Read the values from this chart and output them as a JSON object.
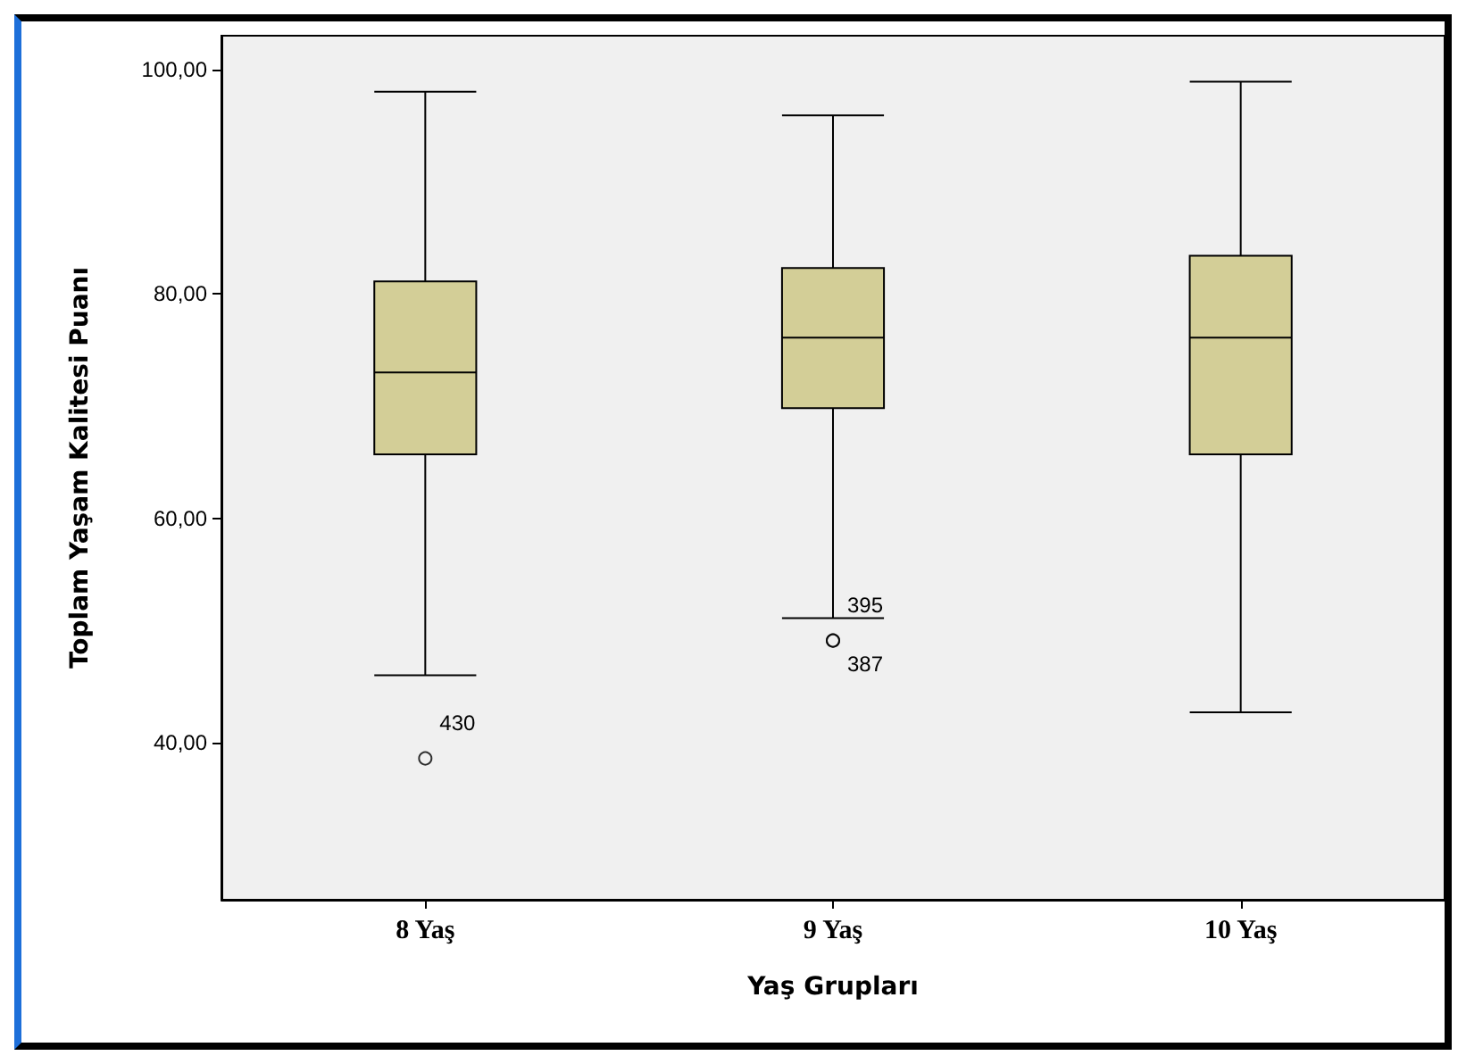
{
  "chart_data": {
    "type": "box",
    "xlabel": "Yaş Grupları",
    "ylabel": "Toplam Yaşam Kalitesi Puanı",
    "categories": [
      "8 Yaş",
      "9 Yaş",
      "10 Yaş"
    ],
    "series": [
      {
        "color": "#d3ce97",
        "boxes": [
          {
            "low": 46,
            "q1": 65.7,
            "median": 73,
            "q3": 81.1,
            "high": 98,
            "outliers": [
              38.6
            ]
          },
          {
            "low": 51.1,
            "q1": 69.8,
            "median": 76.1,
            "q3": 82.3,
            "high": 95.9,
            "outliers": [
              49.1,
              49.1
            ]
          },
          {
            "low": 42.7,
            "q1": 65.7,
            "median": 76.1,
            "q3": 83.4,
            "high": 98.9
          }
        ]
      }
    ],
    "ylim": [
      26,
      103
    ],
    "yticks": [
      {
        "value": 40,
        "label": "40,00"
      },
      {
        "value": 60,
        "label": "60,00"
      },
      {
        "value": 80,
        "label": "80,00"
      },
      {
        "value": 100,
        "label": "100,00"
      }
    ],
    "grid": false,
    "annotations": [
      "430",
      "395",
      "387"
    ]
  }
}
